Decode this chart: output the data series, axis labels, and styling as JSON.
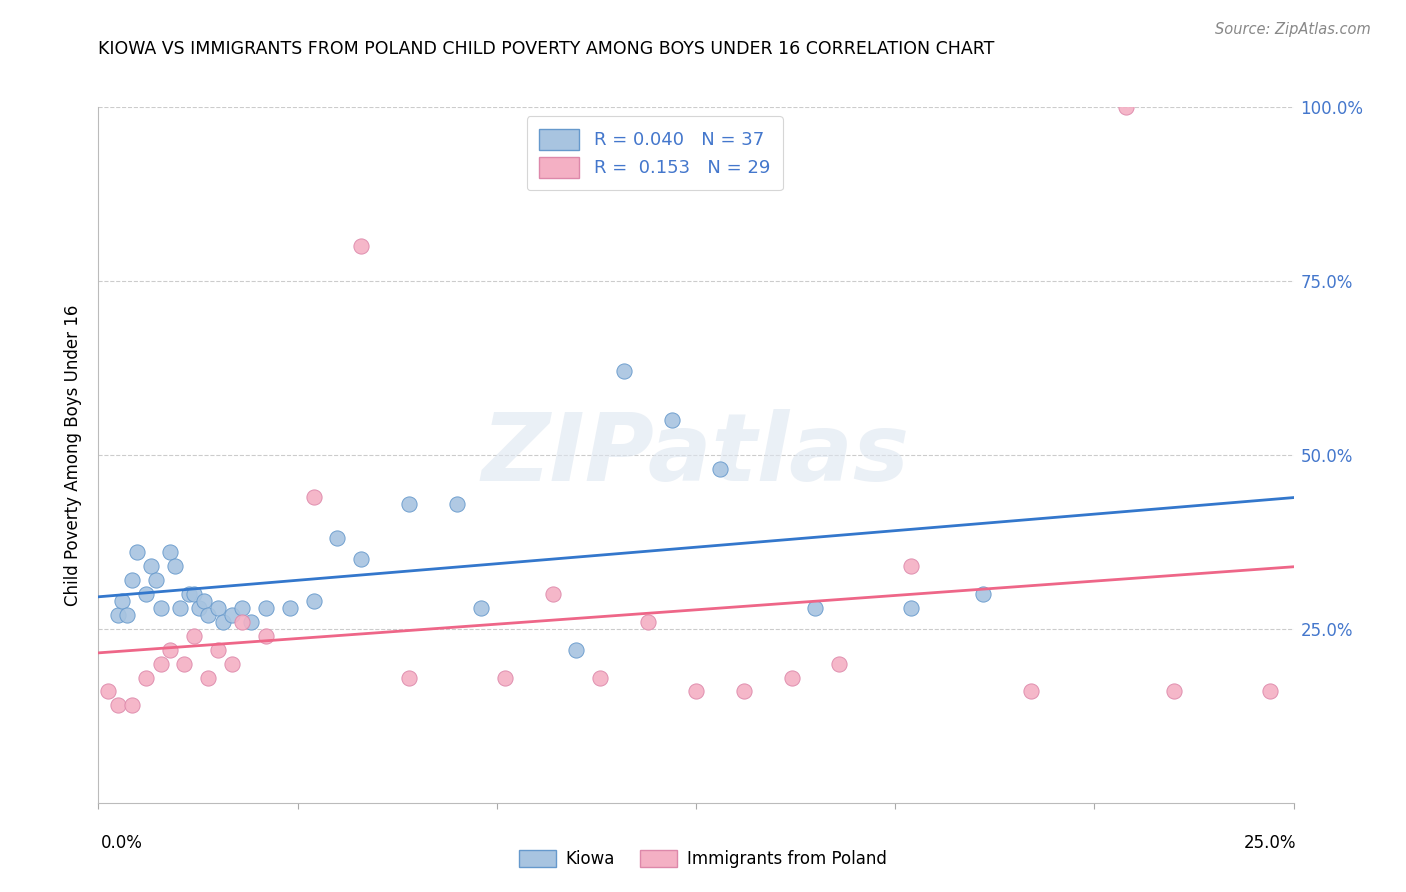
{
  "title": "KIOWA VS IMMIGRANTS FROM POLAND CHILD POVERTY AMONG BOYS UNDER 16 CORRELATION CHART",
  "source": "Source: ZipAtlas.com",
  "ylabel": "Child Poverty Among Boys Under 16",
  "xlim": [
    0.0,
    25.0
  ],
  "ylim": [
    0.0,
    100.0
  ],
  "legend_r1": "R = 0.040",
  "legend_n1": "N = 37",
  "legend_r2": "R =  0.153",
  "legend_n2": "N = 29",
  "kiowa_color": "#a8c4e0",
  "kiowa_edge_color": "#6699cc",
  "poland_color": "#f4b0c4",
  "poland_edge_color": "#dd88aa",
  "kiowa_line_color": "#3377cc",
  "poland_line_color": "#ee6688",
  "grid_color": "#cccccc",
  "right_label_color": "#4477cc",
  "watermark": "ZIPatlas",
  "kiowa_x": [
    0.4,
    0.5,
    0.6,
    0.7,
    0.8,
    1.0,
    1.1,
    1.2,
    1.3,
    1.5,
    1.6,
    1.7,
    1.9,
    2.0,
    2.1,
    2.2,
    2.3,
    2.5,
    2.6,
    2.8,
    3.0,
    3.2,
    3.5,
    4.0,
    4.5,
    5.0,
    5.5,
    6.5,
    7.5,
    8.0,
    10.0,
    11.0,
    12.0,
    13.0,
    15.0,
    17.0,
    18.5
  ],
  "kiowa_y": [
    27,
    29,
    27,
    32,
    36,
    30,
    34,
    32,
    28,
    36,
    34,
    28,
    30,
    30,
    28,
    29,
    27,
    28,
    26,
    27,
    28,
    26,
    28,
    28,
    29,
    38,
    35,
    43,
    43,
    28,
    22,
    62,
    55,
    48,
    28,
    28,
    30
  ],
  "poland_x": [
    0.2,
    0.4,
    0.7,
    1.0,
    1.3,
    1.5,
    1.8,
    2.0,
    2.3,
    2.5,
    2.8,
    3.0,
    3.5,
    4.5,
    5.5,
    6.5,
    8.5,
    9.5,
    10.5,
    11.5,
    12.5,
    13.5,
    14.5,
    15.5,
    17.0,
    19.5,
    21.5,
    22.5,
    24.5
  ],
  "poland_y": [
    16,
    14,
    14,
    18,
    20,
    22,
    20,
    24,
    18,
    22,
    20,
    26,
    24,
    44,
    80,
    18,
    18,
    30,
    18,
    26,
    16,
    16,
    18,
    20,
    34,
    16,
    100,
    16,
    16
  ]
}
